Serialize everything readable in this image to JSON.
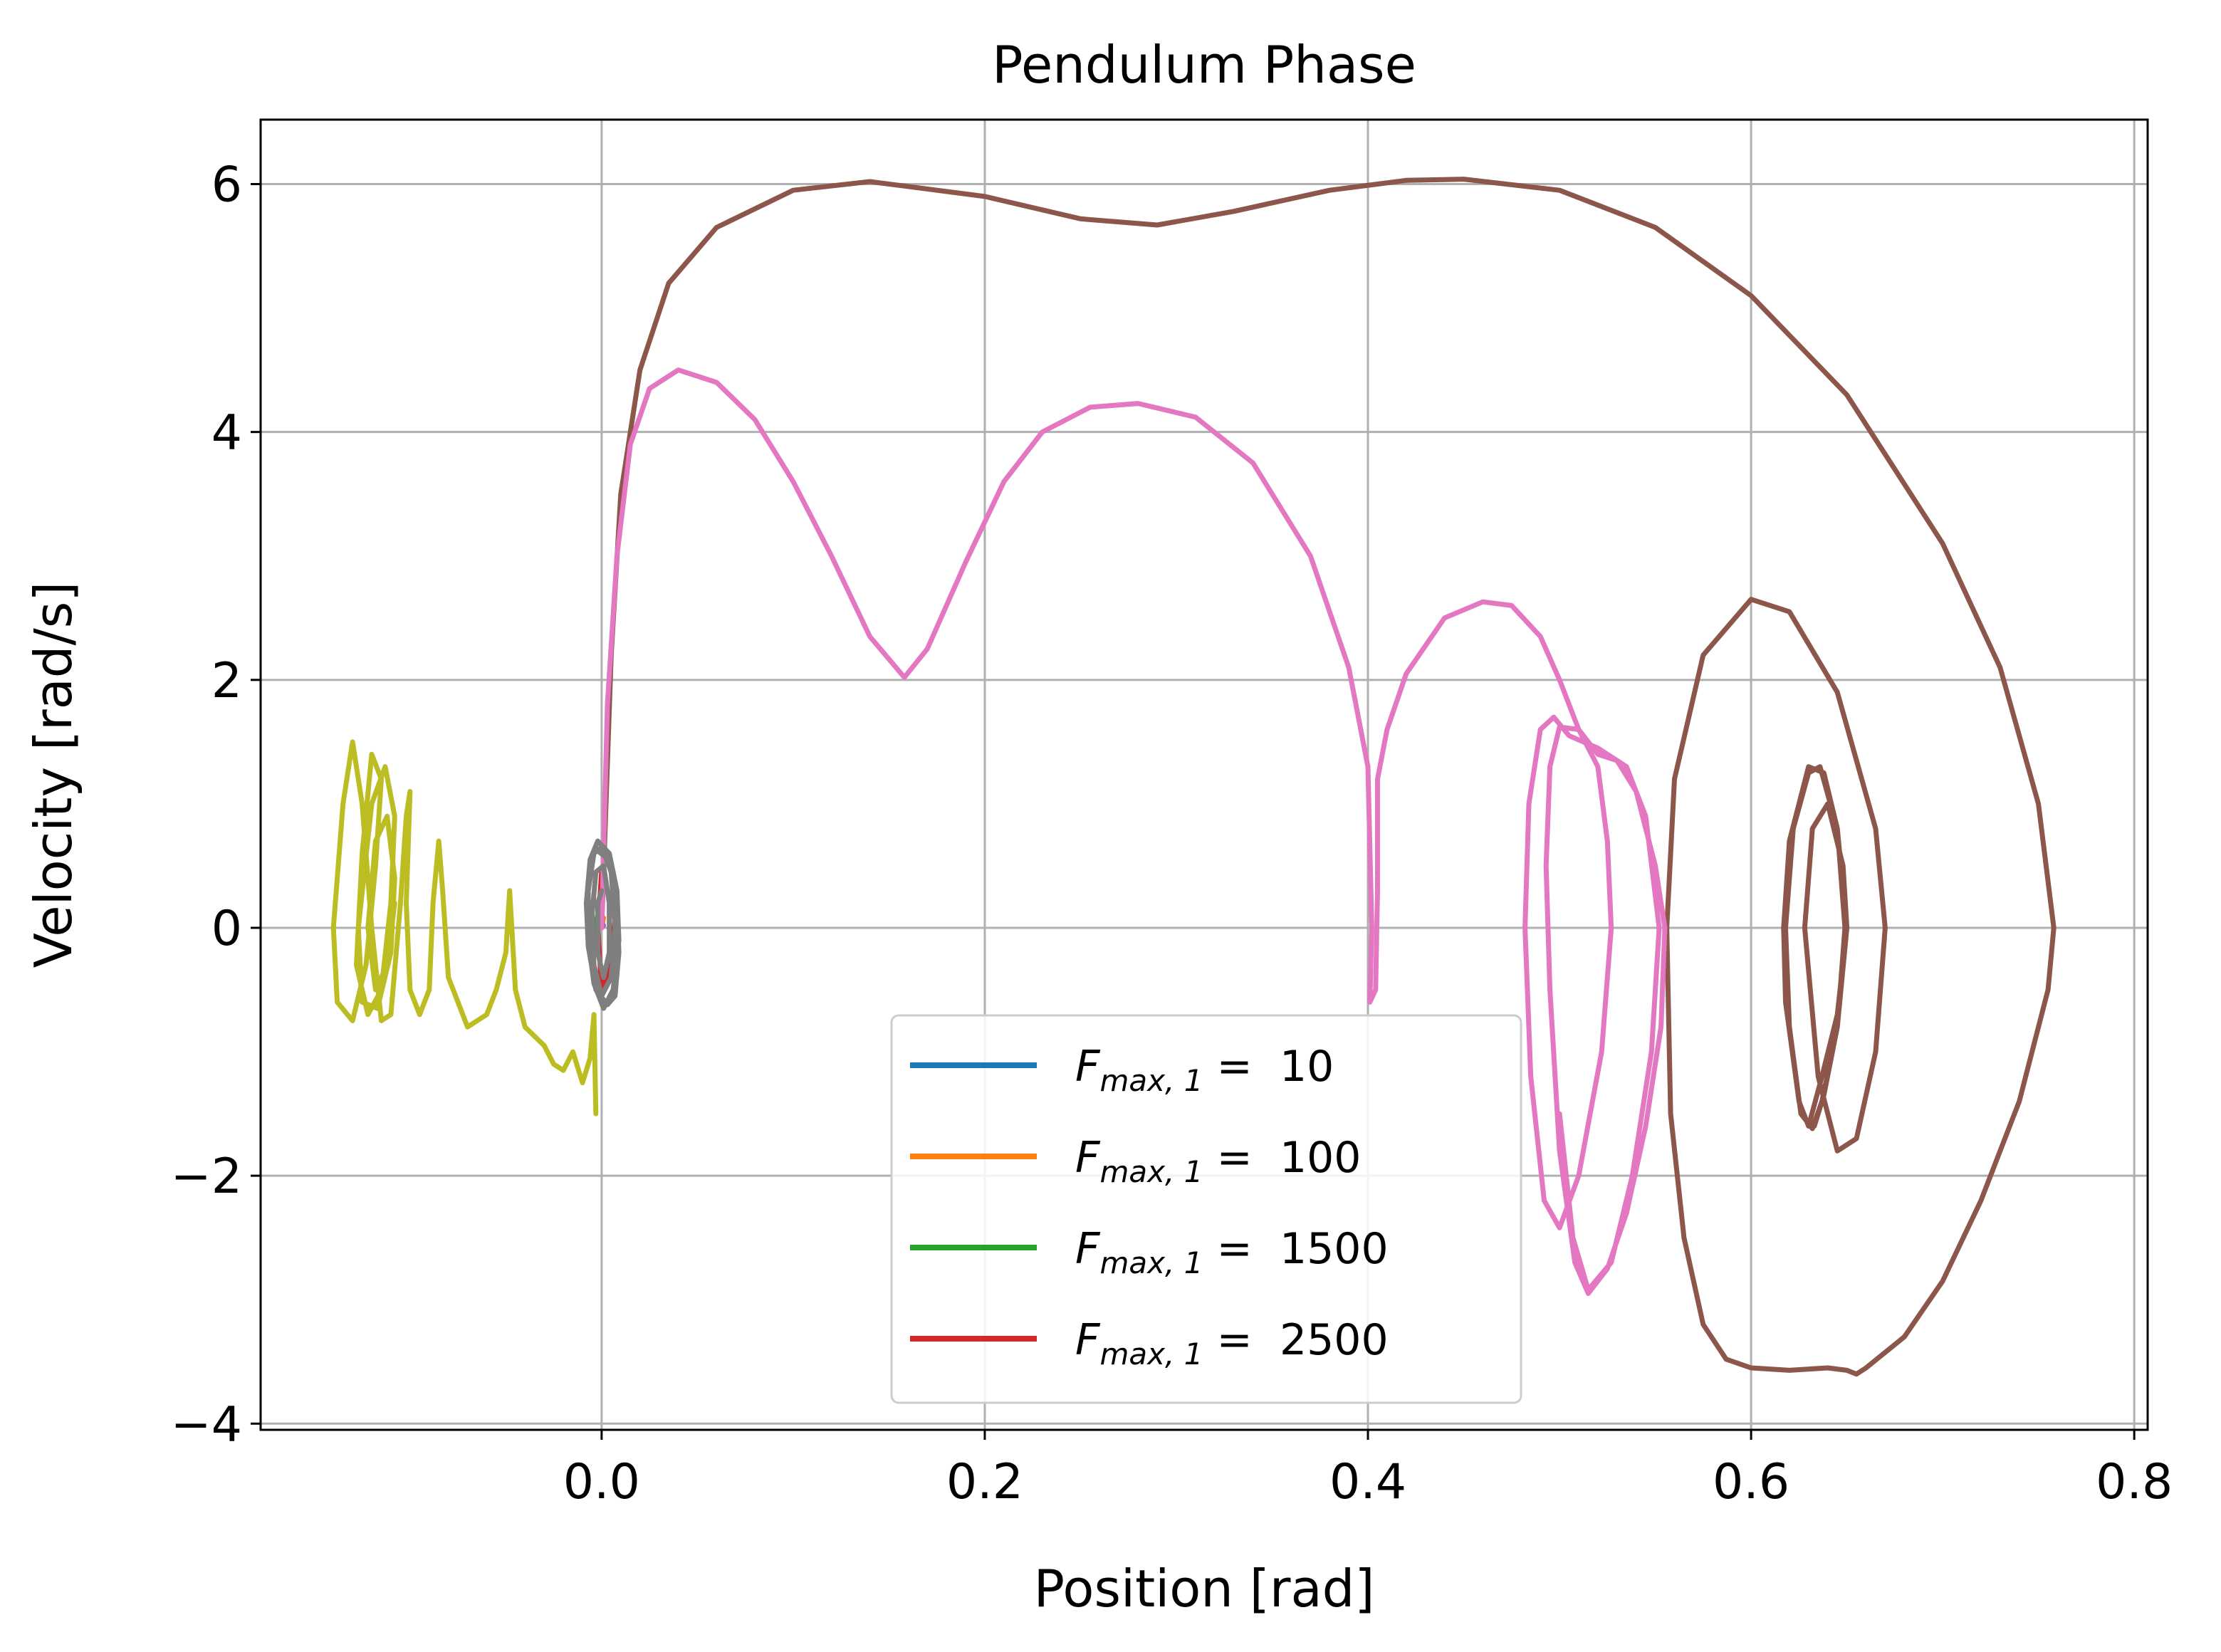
{
  "chart_data": {
    "type": "line",
    "title": "Pendulum Phase",
    "xlabel": "Position [rad]",
    "ylabel": "Velocity [rad/s]",
    "xlim": [
      -0.178,
      0.807
    ],
    "ylim": [
      -4.05,
      6.52
    ],
    "xticks": [
      0.0,
      0.2,
      0.4,
      0.6,
      0.8
    ],
    "xtick_labels": [
      "0.0",
      "0.2",
      "0.4",
      "0.6",
      "0.8"
    ],
    "yticks": [
      -4,
      -2,
      0,
      2,
      4,
      6
    ],
    "ytick_labels": [
      "−4",
      "−2",
      "0",
      "2",
      "4",
      "6"
    ],
    "grid": true,
    "legend_position": "lower center",
    "legend_label": "F",
    "legend_subscript": "max, 1",
    "legend_equals": " =  ",
    "series": [
      {
        "name": "10",
        "color": "#1f77b4",
        "in_legend": true,
        "points": [
          [
            0.0,
            0.0
          ],
          [
            0.0005,
            0.03
          ],
          [
            0.0,
            0.0
          ]
        ]
      },
      {
        "name": "100",
        "color": "#ff7f0e",
        "in_legend": true,
        "points": [
          [
            0.0,
            0.0
          ],
          [
            0.001,
            0.08
          ],
          [
            0.0,
            0.0
          ]
        ]
      },
      {
        "name": "1500",
        "color": "#2ca02c",
        "in_legend": true,
        "points": [
          [
            0.0,
            0.0
          ],
          [
            -0.002,
            0.12
          ],
          [
            -0.004,
            -0.1
          ],
          [
            -0.002,
            0.05
          ],
          [
            0.0,
            0.0
          ]
        ]
      },
      {
        "name": "2500",
        "color": "#d62728",
        "in_legend": true,
        "points": [
          [
            0.0,
            -0.5
          ],
          [
            0.005,
            -0.3
          ],
          [
            0.007,
            0.1
          ],
          [
            0.006,
            0.45
          ],
          [
            0.003,
            0.6
          ],
          [
            0.0,
            0.45
          ],
          [
            -0.002,
            0.0
          ],
          [
            0.0,
            -0.5
          ]
        ]
      },
      {
        "name": "",
        "color": "#9467bd",
        "in_legend": false,
        "points": [
          [
            0.0,
            0.0
          ],
          [
            0.001,
            0.02
          ],
          [
            0.0,
            0.0
          ]
        ]
      },
      {
        "name": "",
        "color": "#8c564b",
        "in_legend": false,
        "points": [
          [
            0.0,
            0.0
          ],
          [
            0.005,
            2.2
          ],
          [
            0.01,
            3.5
          ],
          [
            0.02,
            4.5
          ],
          [
            0.035,
            5.2
          ],
          [
            0.06,
            5.65
          ],
          [
            0.1,
            5.95
          ],
          [
            0.14,
            6.02
          ],
          [
            0.2,
            5.9
          ],
          [
            0.25,
            5.72
          ],
          [
            0.29,
            5.67
          ],
          [
            0.33,
            5.78
          ],
          [
            0.38,
            5.95
          ],
          [
            0.42,
            6.03
          ],
          [
            0.45,
            6.04
          ],
          [
            0.5,
            5.95
          ],
          [
            0.55,
            5.65
          ],
          [
            0.6,
            5.1
          ],
          [
            0.65,
            4.3
          ],
          [
            0.7,
            3.1
          ],
          [
            0.73,
            2.1
          ],
          [
            0.75,
            1.0
          ],
          [
            0.758,
            0.0
          ],
          [
            0.755,
            -0.5
          ],
          [
            0.74,
            -1.4
          ],
          [
            0.72,
            -2.2
          ],
          [
            0.7,
            -2.85
          ],
          [
            0.68,
            -3.3
          ],
          [
            0.66,
            -3.55
          ],
          [
            0.655,
            -3.6
          ],
          [
            0.65,
            -3.57
          ],
          [
            0.64,
            -3.55
          ],
          [
            0.62,
            -3.57
          ],
          [
            0.6,
            -3.55
          ],
          [
            0.587,
            -3.48
          ],
          [
            0.575,
            -3.2
          ],
          [
            0.565,
            -2.5
          ],
          [
            0.558,
            -1.5
          ],
          [
            0.556,
            0.0
          ],
          [
            0.56,
            1.2
          ],
          [
            0.575,
            2.2
          ],
          [
            0.6,
            2.65
          ],
          [
            0.62,
            2.55
          ],
          [
            0.645,
            1.9
          ],
          [
            0.665,
            0.8
          ],
          [
            0.67,
            0.0
          ],
          [
            0.665,
            -1.0
          ],
          [
            0.655,
            -1.7
          ],
          [
            0.645,
            -1.8
          ],
          [
            0.635,
            -1.2
          ],
          [
            0.628,
            0.0
          ],
          [
            0.632,
            0.8
          ],
          [
            0.64,
            1.0
          ],
          [
            0.648,
            0.5
          ],
          [
            0.65,
            0.0
          ],
          [
            0.645,
            -0.7
          ],
          [
            0.637,
            -1.2
          ],
          [
            0.63,
            -1.6
          ],
          [
            0.625,
            -1.4
          ],
          [
            0.618,
            -0.6
          ],
          [
            0.617,
            0.0
          ],
          [
            0.62,
            0.7
          ],
          [
            0.63,
            1.3
          ],
          [
            0.638,
            1.25
          ],
          [
            0.645,
            0.8
          ],
          [
            0.65,
            0.0
          ],
          [
            0.645,
            -0.8
          ],
          [
            0.637,
            -1.4
          ],
          [
            0.632,
            -1.62
          ],
          [
            0.626,
            -1.5
          ],
          [
            0.62,
            -0.8
          ],
          [
            0.618,
            0.0
          ],
          [
            0.622,
            0.8
          ],
          [
            0.63,
            1.25
          ],
          [
            0.636,
            1.3
          ],
          [
            0.645,
            0.8
          ],
          [
            0.649,
            0.0
          ],
          [
            0.645,
            -0.8
          ],
          [
            0.638,
            -1.35
          ],
          [
            0.633,
            -1.6
          ]
        ]
      },
      {
        "name": "",
        "color": "#e377c2",
        "in_legend": false,
        "points": [
          [
            0.0,
            0.0
          ],
          [
            0.003,
            1.8
          ],
          [
            0.008,
            3.0
          ],
          [
            0.015,
            3.9
          ],
          [
            0.025,
            4.35
          ],
          [
            0.04,
            4.5
          ],
          [
            0.06,
            4.4
          ],
          [
            0.08,
            4.1
          ],
          [
            0.1,
            3.6
          ],
          [
            0.12,
            3.0
          ],
          [
            0.14,
            2.35
          ],
          [
            0.158,
            2.02
          ],
          [
            0.17,
            2.25
          ],
          [
            0.19,
            2.95
          ],
          [
            0.21,
            3.6
          ],
          [
            0.23,
            4.0
          ],
          [
            0.255,
            4.2
          ],
          [
            0.28,
            4.23
          ],
          [
            0.31,
            4.12
          ],
          [
            0.34,
            3.75
          ],
          [
            0.37,
            3.0
          ],
          [
            0.39,
            2.1
          ],
          [
            0.4,
            1.3
          ],
          [
            0.402,
            0.0
          ],
          [
            0.401,
            -0.6
          ],
          [
            0.404,
            -0.5
          ],
          [
            0.405,
            0.3
          ],
          [
            0.405,
            1.2
          ],
          [
            0.41,
            1.6
          ],
          [
            0.42,
            2.05
          ],
          [
            0.44,
            2.5
          ],
          [
            0.46,
            2.63
          ],
          [
            0.475,
            2.6
          ],
          [
            0.49,
            2.35
          ],
          [
            0.5,
            2.0
          ],
          [
            0.51,
            1.6
          ],
          [
            0.52,
            1.4
          ],
          [
            0.53,
            1.35
          ],
          [
            0.54,
            1.1
          ],
          [
            0.55,
            0.5
          ],
          [
            0.555,
            0.0
          ],
          [
            0.553,
            -0.8
          ],
          [
            0.545,
            -1.6
          ],
          [
            0.535,
            -2.3
          ],
          [
            0.525,
            -2.75
          ],
          [
            0.515,
            -2.95
          ],
          [
            0.508,
            -2.7
          ],
          [
            0.5,
            -1.8
          ],
          [
            0.495,
            -0.5
          ],
          [
            0.493,
            0.5
          ],
          [
            0.495,
            1.3
          ],
          [
            0.5,
            1.62
          ],
          [
            0.51,
            1.6
          ],
          [
            0.52,
            1.3
          ],
          [
            0.525,
            0.7
          ],
          [
            0.527,
            0.0
          ],
          [
            0.522,
            -1.0
          ],
          [
            0.51,
            -2.0
          ],
          [
            0.5,
            -2.42
          ],
          [
            0.492,
            -2.2
          ],
          [
            0.485,
            -1.2
          ],
          [
            0.482,
            0.0
          ],
          [
            0.484,
            1.0
          ],
          [
            0.49,
            1.6
          ],
          [
            0.497,
            1.7
          ],
          [
            0.505,
            1.55
          ],
          [
            0.52,
            1.45
          ],
          [
            0.535,
            1.3
          ],
          [
            0.545,
            0.9
          ],
          [
            0.552,
            0.0
          ],
          [
            0.548,
            -1.0
          ],
          [
            0.538,
            -2.0
          ],
          [
            0.527,
            -2.7
          ],
          [
            0.515,
            -2.92
          ],
          [
            0.507,
            -2.5
          ],
          [
            0.5,
            -1.5
          ]
        ]
      },
      {
        "name": "",
        "color": "#7f7f7f",
        "in_legend": false,
        "points": [
          [
            -0.002,
            0.62
          ],
          [
            0.004,
            0.55
          ],
          [
            0.008,
            0.2
          ],
          [
            0.009,
            -0.2
          ],
          [
            0.007,
            -0.55
          ],
          [
            0.003,
            -0.62
          ],
          [
            -0.003,
            -0.5
          ],
          [
            -0.007,
            -0.15
          ],
          [
            -0.008,
            0.2
          ],
          [
            -0.006,
            0.55
          ],
          [
            -0.002,
            0.7
          ],
          [
            0.004,
            0.6
          ],
          [
            0.008,
            0.3
          ],
          [
            0.009,
            -0.1
          ],
          [
            0.006,
            -0.5
          ],
          [
            0.001,
            -0.65
          ],
          [
            -0.004,
            -0.45
          ],
          [
            -0.007,
            -0.1
          ],
          [
            -0.007,
            0.3
          ],
          [
            -0.004,
            0.6
          ],
          [
            0.0,
            0.65
          ],
          [
            0.005,
            0.45
          ],
          [
            0.007,
            0.0
          ],
          [
            0.005,
            -0.4
          ],
          [
            0.0,
            -0.55
          ],
          [
            -0.004,
            -0.3
          ],
          [
            -0.005,
            0.1
          ],
          [
            -0.003,
            0.45
          ],
          [
            0.001,
            0.5
          ],
          [
            0.004,
            0.2
          ],
          [
            0.004,
            -0.2
          ],
          [
            0.001,
            -0.4
          ],
          [
            -0.002,
            -0.2
          ],
          [
            -0.002,
            0.2
          ],
          [
            0.0,
            0.3
          ]
        ]
      },
      {
        "name": "",
        "color": "#bcbd22",
        "in_legend": false,
        "points": [
          [
            -0.003,
            -1.5
          ],
          [
            -0.004,
            -0.7
          ],
          [
            -0.006,
            -1.05
          ],
          [
            -0.01,
            -1.25
          ],
          [
            -0.015,
            -1.0
          ],
          [
            -0.02,
            -1.15
          ],
          [
            -0.025,
            -1.1
          ],
          [
            -0.03,
            -0.95
          ],
          [
            -0.04,
            -0.8
          ],
          [
            -0.045,
            -0.5
          ],
          [
            -0.048,
            0.3
          ],
          [
            -0.05,
            -0.2
          ],
          [
            -0.055,
            -0.5
          ],
          [
            -0.06,
            -0.7
          ],
          [
            -0.07,
            -0.8
          ],
          [
            -0.08,
            -0.4
          ],
          [
            -0.083,
            0.3
          ],
          [
            -0.085,
            0.7
          ],
          [
            -0.088,
            0.2
          ],
          [
            -0.09,
            -0.5
          ],
          [
            -0.095,
            -0.7
          ],
          [
            -0.1,
            -0.5
          ],
          [
            -0.102,
            0.2
          ],
          [
            -0.1,
            1.1
          ],
          [
            -0.102,
            0.9
          ],
          [
            -0.105,
            0.2
          ],
          [
            -0.11,
            -0.7
          ],
          [
            -0.115,
            -0.75
          ],
          [
            -0.12,
            0.0
          ],
          [
            -0.125,
            1.0
          ],
          [
            -0.13,
            1.5
          ],
          [
            -0.135,
            1.0
          ],
          [
            -0.14,
            0.0
          ],
          [
            -0.138,
            -0.6
          ],
          [
            -0.13,
            -0.75
          ],
          [
            -0.123,
            -0.3
          ],
          [
            -0.118,
            0.5
          ],
          [
            -0.115,
            1.2
          ],
          [
            -0.12,
            1.4
          ],
          [
            -0.125,
            0.6
          ],
          [
            -0.128,
            -0.3
          ],
          [
            -0.122,
            -0.7
          ],
          [
            -0.115,
            -0.5
          ],
          [
            -0.11,
            0.2
          ],
          [
            -0.108,
            0.9
          ],
          [
            -0.113,
            1.3
          ],
          [
            -0.12,
            1.0
          ],
          [
            -0.127,
            0.0
          ],
          [
            -0.125,
            -0.6
          ],
          [
            -0.117,
            -0.65
          ],
          [
            -0.11,
            -0.2
          ],
          [
            -0.108,
            0.4
          ],
          [
            -0.112,
            0.9
          ],
          [
            -0.118,
            0.7
          ],
          [
            -0.122,
            0.0
          ],
          [
            -0.118,
            -0.5
          ],
          [
            -0.112,
            -0.3
          ],
          [
            -0.108,
            0.2
          ]
        ]
      }
    ]
  }
}
